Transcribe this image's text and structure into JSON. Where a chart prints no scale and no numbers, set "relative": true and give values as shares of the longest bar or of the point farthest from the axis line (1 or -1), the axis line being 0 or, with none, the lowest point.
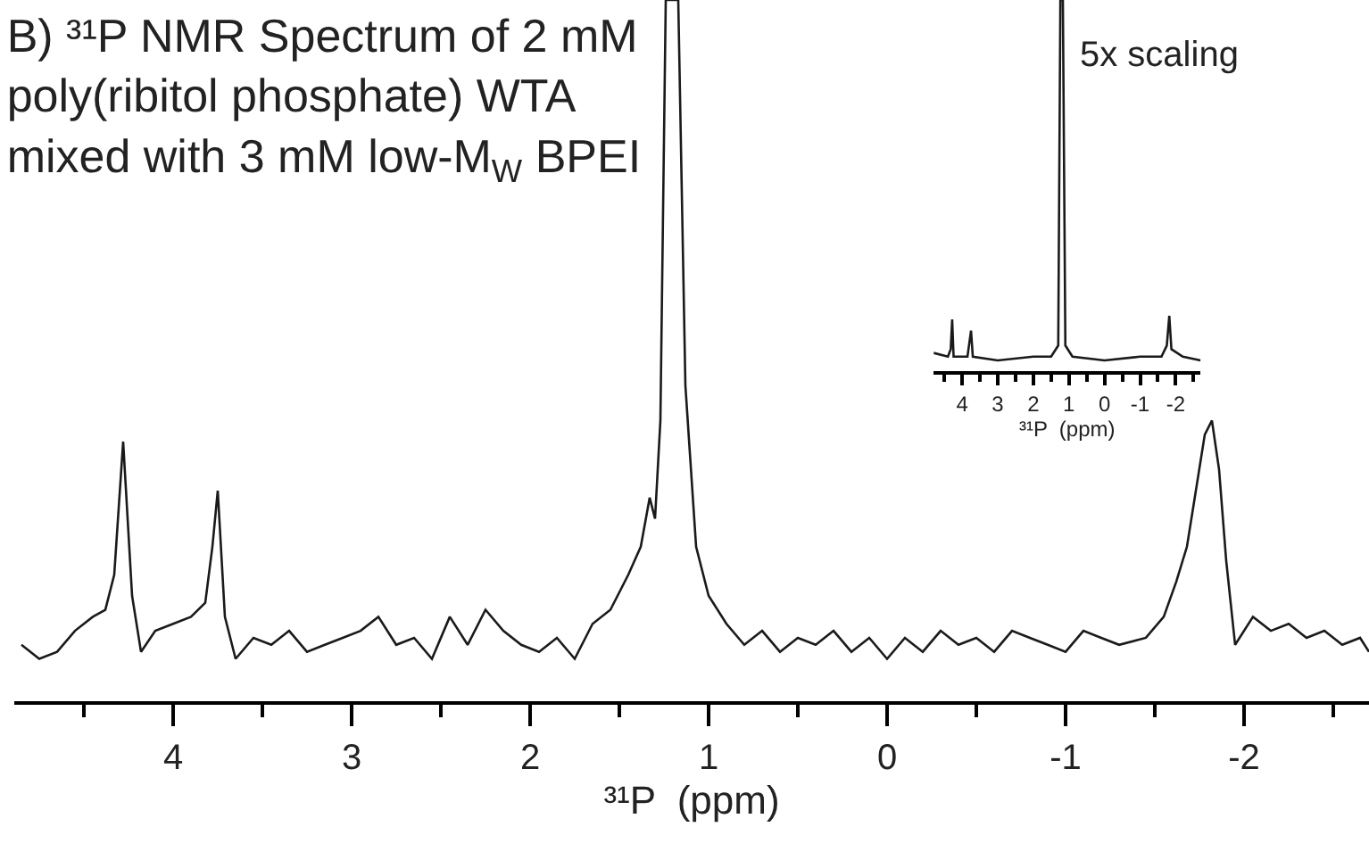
{
  "chart_data": [
    {
      "type": "line",
      "title": "B) ³¹P NMR Spectrum of 2 mM\npoly(ribitol phosphate) WTA\nmixed with 3 mM low-M$_{W}$ BPEI",
      "xlabel": "³¹P  (ppm)",
      "relative": true,
      "xlim": [
        4.89,
        -2.7
      ],
      "xticks": [
        4,
        {
          "value": 3.5,
          "label": null
        },
        3,
        {
          "value": 2.5,
          "label": null
        },
        2,
        {
          "value": 1.5,
          "label": null
        },
        1,
        {
          "value": 0.5,
          "label": null
        },
        0,
        {
          "value": -0.5,
          "label": null
        },
        -1,
        {
          "value": -1.5,
          "label": null
        },
        -2,
        {
          "value": -2.5,
          "label": null
        },
        {
          "value": 4.5,
          "label": null
        }
      ],
      "series": [
        {
          "color": "#1a1a1a",
          "x": [
            4.85,
            4.75,
            4.65,
            4.55,
            4.45,
            4.38,
            4.33,
            4.28,
            4.23,
            4.18,
            4.1,
            4.0,
            3.9,
            3.82,
            3.78,
            3.75,
            3.71,
            3.65,
            3.55,
            3.45,
            3.35,
            3.25,
            3.15,
            3.05,
            2.95,
            2.85,
            2.75,
            2.65,
            2.55,
            2.45,
            2.35,
            2.25,
            2.15,
            2.05,
            1.95,
            1.85,
            1.75,
            1.65,
            1.55,
            1.45,
            1.38,
            1.33,
            1.3,
            1.27,
            1.24,
            1.17,
            1.13,
            1.07,
            1.0,
            0.9,
            0.8,
            0.7,
            0.6,
            0.5,
            0.4,
            0.3,
            0.2,
            0.1,
            0.0,
            -0.1,
            -0.2,
            -0.3,
            -0.4,
            -0.5,
            -0.6,
            -0.7,
            -0.8,
            -0.9,
            -1.0,
            -1.1,
            -1.2,
            -1.3,
            -1.45,
            -1.55,
            -1.62,
            -1.68,
            -1.73,
            -1.78,
            -1.82,
            -1.86,
            -1.9,
            -1.95,
            -2.05,
            -2.15,
            -2.25,
            -2.35,
            -2.45,
            -2.55,
            -2.65,
            -2.7
          ],
          "values": [
            0.08,
            0.06,
            0.07,
            0.1,
            0.12,
            0.13,
            0.18,
            0.37,
            0.15,
            0.07,
            0.1,
            0.11,
            0.12,
            0.14,
            0.22,
            0.3,
            0.12,
            0.06,
            0.09,
            0.08,
            0.1,
            0.07,
            0.08,
            0.09,
            0.1,
            0.12,
            0.08,
            0.09,
            0.06,
            0.12,
            0.08,
            0.13,
            0.1,
            0.08,
            0.07,
            0.09,
            0.06,
            0.11,
            0.13,
            0.18,
            0.22,
            0.29,
            0.26,
            0.4,
            1.0,
            1.0,
            0.45,
            0.22,
            0.15,
            0.11,
            0.08,
            0.1,
            0.07,
            0.09,
            0.08,
            0.1,
            0.07,
            0.09,
            0.06,
            0.09,
            0.07,
            0.1,
            0.08,
            0.09,
            0.07,
            0.1,
            0.09,
            0.08,
            0.07,
            0.1,
            0.09,
            0.08,
            0.09,
            0.12,
            0.17,
            0.22,
            0.3,
            0.38,
            0.4,
            0.33,
            0.2,
            0.08,
            0.12,
            0.1,
            0.11,
            0.09,
            0.1,
            0.08,
            0.09,
            0.07
          ]
        }
      ]
    },
    {
      "type": "line",
      "xlabel": "³¹P  (ppm)",
      "relative": true,
      "annotations": [
        "5x scaling"
      ],
      "xlim": [
        4.8,
        -2.7
      ],
      "xticks": [
        4,
        3,
        2,
        1,
        0,
        -1,
        -2,
        {
          "value": 4.5,
          "label": null
        },
        {
          "value": 3.5,
          "label": null
        },
        {
          "value": 2.5,
          "label": null
        },
        {
          "value": 1.5,
          "label": null
        },
        {
          "value": 0.5,
          "label": null
        },
        {
          "value": -0.5,
          "label": null
        },
        {
          "value": -1.5,
          "label": null
        },
        {
          "value": -2.5,
          "label": null
        }
      ],
      "series": [
        {
          "color": "#1a1a1a",
          "x": [
            4.8,
            4.4,
            4.32,
            4.28,
            4.24,
            3.85,
            3.75,
            3.7,
            3.0,
            2.0,
            1.5,
            1.3,
            1.24,
            1.17,
            1.1,
            0.9,
            0.0,
            -1.0,
            -1.6,
            -1.75,
            -1.82,
            -1.88,
            -2.2,
            -2.7
          ],
          "values": [
            0.05,
            0.04,
            0.06,
            0.14,
            0.04,
            0.04,
            0.11,
            0.04,
            0.03,
            0.04,
            0.04,
            0.07,
            1.0,
            1.0,
            0.07,
            0.04,
            0.03,
            0.04,
            0.04,
            0.07,
            0.15,
            0.06,
            0.04,
            0.03
          ]
        }
      ]
    }
  ]
}
